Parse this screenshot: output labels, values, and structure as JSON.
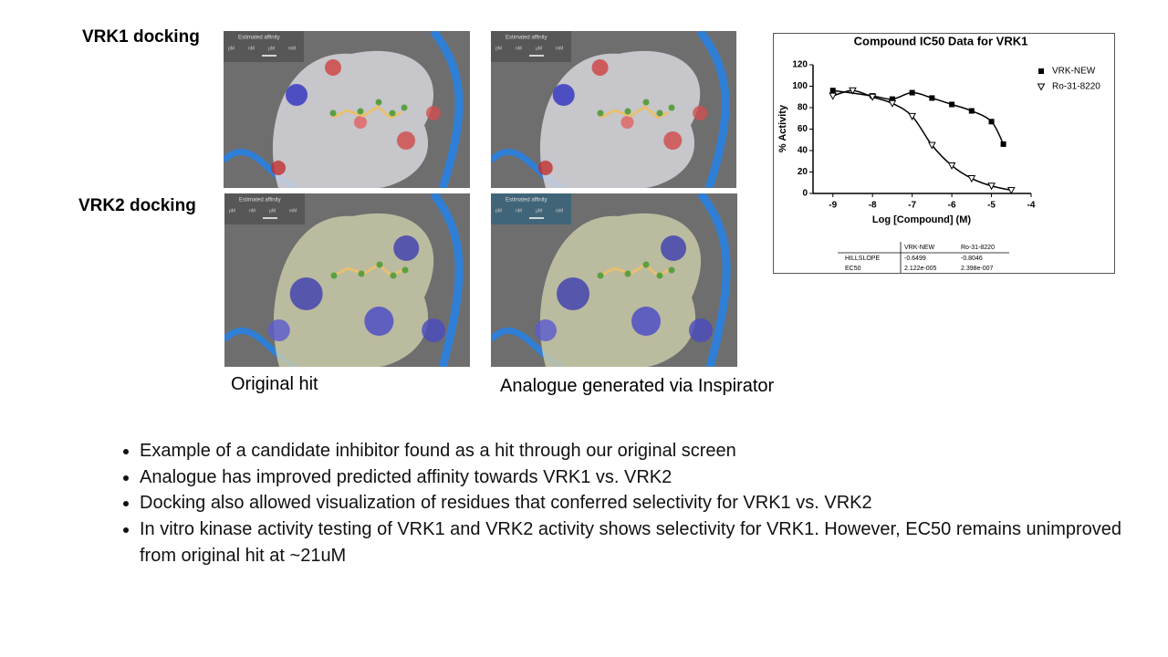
{
  "slide": {
    "row_labels": [
      "VRK1 docking",
      "VRK2 docking"
    ],
    "captions": [
      "Original hit",
      "Analogue generated via Inspirator"
    ],
    "affinity_widget": {
      "title": "Estimated affinity",
      "scale": [
        "pM",
        "nM",
        "μM",
        "mM"
      ]
    },
    "bullets": [
      "Example of a candidate inhibitor found as a hit through our original screen",
      "Analogue has improved predicted affinity towards VRK1 vs. VRK2",
      "Docking also allowed visualization of residues that conferred selectivity for VRK1 vs. VRK2",
      "In vitro kinase activity testing of VRK1 and VRK2 activity shows selectivity for VRK1. However, EC50 remains unimproved from original hit at ~21uM"
    ],
    "table": {
      "header": [
        "VRK-NEW",
        "Ro-31-8220"
      ],
      "rows": [
        [
          "HILLSLOPE",
          "-0.6499",
          "-0.8046"
        ],
        [
          "EC50",
          "2.122e-005",
          "2.398e-007"
        ]
      ]
    }
  },
  "chart_data": {
    "type": "scatter",
    "title": "Compound IC50 Data for VRK1",
    "x_label": "Log [Compound] (M)",
    "y_label": "% Activity",
    "xlim": [
      -9.5,
      -4
    ],
    "xticks": [
      -9,
      -8,
      -7,
      -6,
      -5,
      -4
    ],
    "ylim": [
      0,
      120
    ],
    "yticks": [
      0,
      20,
      40,
      60,
      80,
      100,
      120
    ],
    "legend": "top-right",
    "series": [
      {
        "name": "VRK-NEW",
        "color": "#000000",
        "marker": "square",
        "x": [
          -9,
          -8,
          -7.5,
          -7,
          -6.5,
          -6,
          -5.5,
          -5,
          -4.7
        ],
        "values": [
          96,
          91,
          88,
          94,
          89,
          83,
          77,
          67,
          46
        ]
      },
      {
        "name": "Ro-31-8220",
        "color": "#000000",
        "marker": "triangle-down",
        "x": [
          -9,
          -8.5,
          -8,
          -7.5,
          -7,
          -6.5,
          -6,
          -5.5,
          -5,
          -4.5
        ],
        "values": [
          91,
          96,
          90,
          84,
          72,
          45,
          26,
          14,
          7,
          3
        ]
      }
    ]
  }
}
